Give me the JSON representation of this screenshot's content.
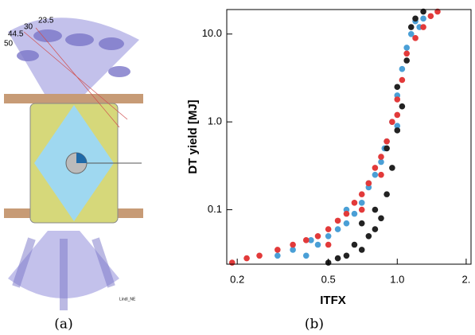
{
  "panel_a": {
    "angles": [
      "50",
      "44.5",
      "30",
      "23.5"
    ],
    "credit": "Lindl_NE",
    "caption": "(a)"
  },
  "chart_data": {
    "type": "scatter",
    "caption": "(b)",
    "x_label": "ITFX",
    "y_label": "DT yield [MJ]",
    "xscale": "log",
    "yscale": "log",
    "xlim": [
      0.18,
      2.1
    ],
    "ylim": [
      0.024,
      19
    ],
    "xticks": [
      0.2,
      0.5,
      {
        "value": 1,
        "label": "1.0"
      },
      {
        "value": 2,
        "label": "2."
      }
    ],
    "yticks": [
      0.1,
      {
        "value": 1,
        "label": "1.0"
      },
      {
        "value": 10,
        "label": "10.0"
      }
    ],
    "series": [
      {
        "color": "#4a9fd6",
        "x": [
          0.3,
          0.35,
          0.4,
          0.45,
          0.5,
          0.55,
          0.6,
          0.65,
          0.7,
          0.75,
          0.8,
          0.85,
          0.9,
          0.95,
          1.0,
          1.05,
          1.1,
          1.15,
          1.2,
          1.3,
          0.42,
          0.6,
          0.75,
          0.88,
          1.0,
          1.25
        ],
        "values": [
          0.03,
          0.035,
          0.03,
          0.04,
          0.05,
          0.06,
          0.07,
          0.09,
          0.12,
          0.18,
          0.25,
          0.35,
          0.6,
          1.0,
          2.0,
          4.0,
          7.0,
          10.0,
          14.0,
          15.0,
          0.045,
          0.1,
          0.2,
          0.5,
          0.9,
          12.0
        ]
      },
      {
        "color": "#222222",
        "x": [
          0.5,
          0.6,
          0.7,
          0.75,
          0.8,
          0.85,
          0.9,
          0.95,
          1.0,
          1.05,
          1.1,
          1.15,
          0.65,
          0.8,
          0.9,
          1.0,
          1.2,
          1.3,
          0.55,
          0.7
        ],
        "values": [
          0.025,
          0.03,
          0.035,
          0.05,
          0.06,
          0.08,
          0.15,
          0.3,
          0.8,
          1.5,
          5.0,
          12,
          0.04,
          0.1,
          0.5,
          2.5,
          15,
          18,
          0.028,
          0.07
        ]
      },
      {
        "color": "#e23a3a",
        "x": [
          0.19,
          0.22,
          0.25,
          0.3,
          0.35,
          0.4,
          0.45,
          0.5,
          0.55,
          0.6,
          0.65,
          0.7,
          0.75,
          0.8,
          0.85,
          0.9,
          0.95,
          1.0,
          1.05,
          1.1,
          1.2,
          1.3,
          1.4,
          1.5,
          0.5,
          0.7,
          0.85,
          1.0
        ],
        "values": [
          0.025,
          0.028,
          0.03,
          0.035,
          0.04,
          0.045,
          0.05,
          0.06,
          0.075,
          0.09,
          0.12,
          0.15,
          0.2,
          0.3,
          0.4,
          0.6,
          1.0,
          1.8,
          3.0,
          6.0,
          9.0,
          12,
          16,
          18,
          0.04,
          0.1,
          0.25,
          1.2
        ]
      }
    ]
  }
}
